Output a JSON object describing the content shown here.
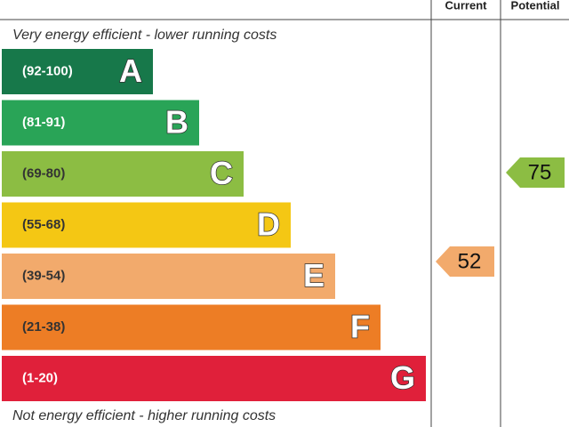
{
  "header": {
    "current": "Current",
    "potential": "Potential"
  },
  "top_note": "Very energy efficient - lower running costs",
  "bottom_note": "Not energy efficient - higher running costs",
  "bands": [
    {
      "range": "(92-100)",
      "letter": "A",
      "color": "#17784a"
    },
    {
      "range": "(81-91)",
      "letter": "B",
      "color": "#29a457"
    },
    {
      "range": "(69-80)",
      "letter": "C",
      "color": "#8cbd43"
    },
    {
      "range": "(55-68)",
      "letter": "D",
      "color": "#f4c714"
    },
    {
      "range": "(39-54)",
      "letter": "E",
      "color": "#f2aa6c"
    },
    {
      "range": "(21-38)",
      "letter": "F",
      "color": "#ed7d25"
    },
    {
      "range": "(1-20)",
      "letter": "G",
      "color": "#e0203a"
    }
  ],
  "current": {
    "score": "52",
    "color": "#f2aa6c"
  },
  "potential": {
    "score": "75",
    "color": "#8cbd43"
  }
}
